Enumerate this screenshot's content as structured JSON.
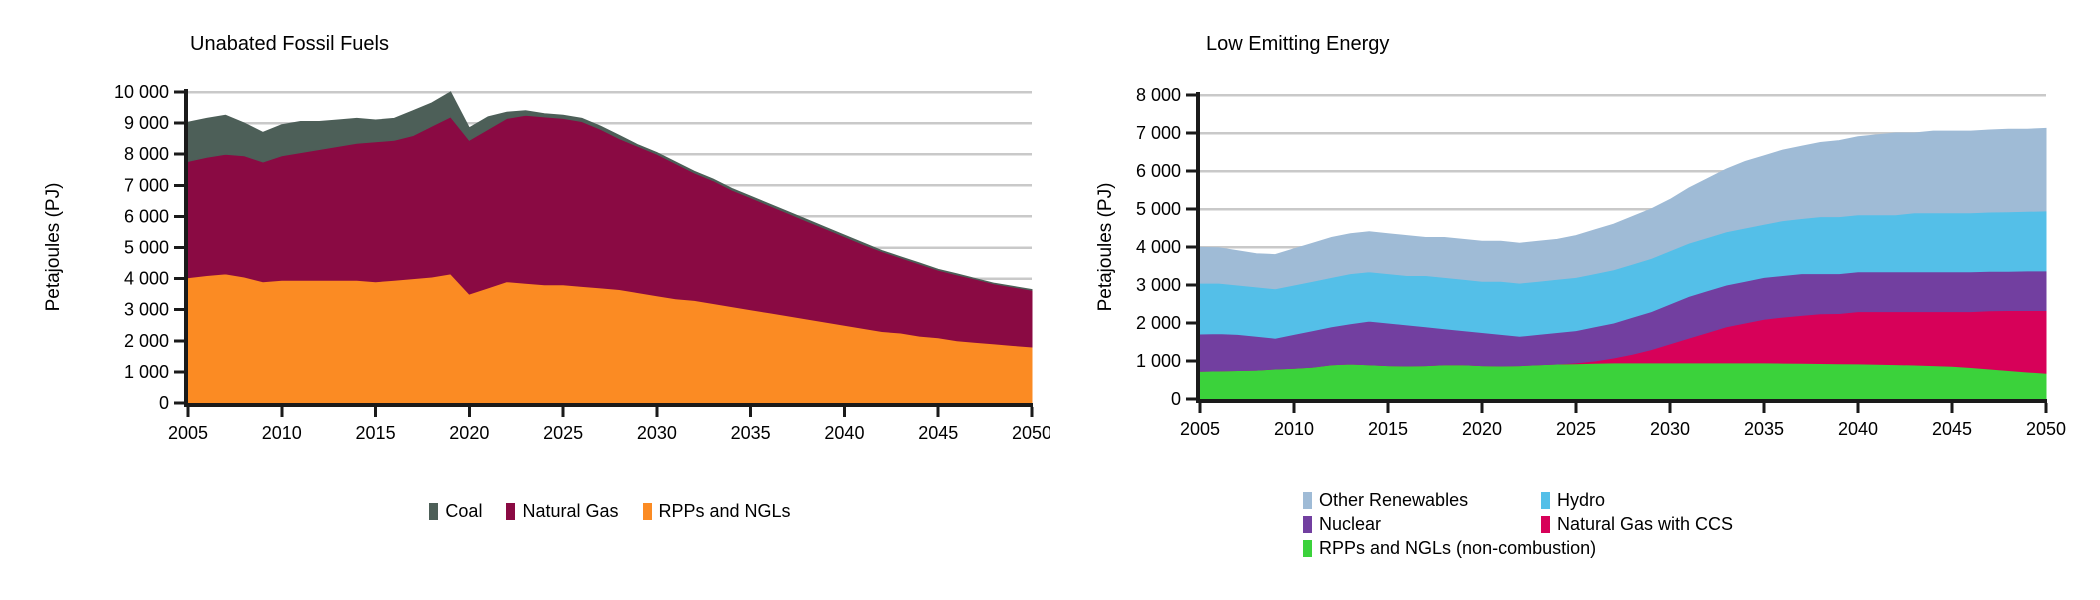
{
  "figure": {
    "background": "#ffffff",
    "axis_color": "#1a1a1a",
    "grid_color": "#c9c9c9"
  },
  "chart_data": [
    {
      "type": "area",
      "stacked": true,
      "title": "Unabated Fossil Fuels",
      "ylabel": "Petajoules (PJ)",
      "xlabel": "",
      "xlim": [
        2005,
        2050
      ],
      "ylim": [
        0,
        10000
      ],
      "grid": true,
      "legend_position": "bottom-center",
      "x_ticks": [
        2005,
        2010,
        2015,
        2020,
        2025,
        2030,
        2035,
        2040,
        2045,
        2050
      ],
      "x_tick_labels": [
        "2005",
        "2010",
        "2015",
        "2020",
        "2025",
        "2030",
        "2035",
        "2040",
        "2045",
        "2050"
      ],
      "y_tick_step": 1000,
      "y_tick_labels": [
        "0",
        "1 000",
        "2 000",
        "3 000",
        "4 000",
        "5 000",
        "6 000",
        "7 000",
        "8 000",
        "9 000",
        "10 000"
      ],
      "x": [
        2005,
        2006,
        2007,
        2008,
        2009,
        2010,
        2011,
        2012,
        2013,
        2014,
        2015,
        2016,
        2017,
        2018,
        2019,
        2020,
        2021,
        2022,
        2023,
        2024,
        2025,
        2026,
        2027,
        2028,
        2029,
        2030,
        2031,
        2032,
        2033,
        2034,
        2035,
        2036,
        2037,
        2038,
        2039,
        2040,
        2041,
        2042,
        2043,
        2044,
        2045,
        2046,
        2047,
        2048,
        2049,
        2050
      ],
      "series": [
        {
          "name": "RPPs and NGLs",
          "color": "#fb8b23",
          "values": [
            4030,
            4100,
            4150,
            4050,
            3900,
            3950,
            3950,
            3950,
            3950,
            3950,
            3900,
            3950,
            4000,
            4050,
            4150,
            3500,
            3700,
            3900,
            3850,
            3800,
            3800,
            3750,
            3700,
            3650,
            3550,
            3450,
            3350,
            3300,
            3200,
            3100,
            3000,
            2900,
            2800,
            2700,
            2600,
            2500,
            2400,
            2300,
            2250,
            2150,
            2100,
            2000,
            1950,
            1900,
            1850,
            1800
          ]
        },
        {
          "name": "Natural Gas",
          "color": "#8a0a43",
          "values": [
            3740,
            3800,
            3850,
            3900,
            3850,
            4000,
            4100,
            4200,
            4300,
            4400,
            4500,
            4500,
            4600,
            4850,
            5050,
            4950,
            5100,
            5250,
            5400,
            5400,
            5350,
            5300,
            5100,
            4850,
            4700,
            4550,
            4350,
            4100,
            3950,
            3750,
            3600,
            3450,
            3300,
            3150,
            3000,
            2850,
            2700,
            2570,
            2420,
            2320,
            2170,
            2120,
            2030,
            1930,
            1880,
            1830
          ]
        },
        {
          "name": "Coal",
          "color": "#4d5f58",
          "values": [
            1260,
            1250,
            1250,
            1050,
            950,
            1000,
            1000,
            900,
            850,
            800,
            700,
            700,
            800,
            750,
            800,
            400,
            400,
            200,
            150,
            100,
            100,
            100,
            100,
            100,
            50,
            50,
            50,
            50,
            50,
            50,
            50,
            50,
            50,
            50,
            50,
            50,
            50,
            30,
            30,
            30,
            30,
            30,
            20,
            20,
            20,
            20
          ]
        }
      ],
      "legend": {
        "layout": "row",
        "order": [
          2,
          1,
          0
        ]
      }
    },
    {
      "type": "area",
      "stacked": true,
      "title": "Low Emitting Energy",
      "ylabel": "Petajoules (PJ)",
      "xlabel": "",
      "xlim": [
        2005,
        2050
      ],
      "ylim": [
        0,
        8000
      ],
      "grid": true,
      "legend_position": "bottom-two-columns",
      "x_ticks": [
        2005,
        2010,
        2015,
        2020,
        2025,
        2030,
        2035,
        2040,
        2045,
        2050
      ],
      "x_tick_labels": [
        "2005",
        "2010",
        "2015",
        "2020",
        "2025",
        "2030",
        "2035",
        "2040",
        "2045",
        "2050"
      ],
      "y_tick_step": 1000,
      "y_tick_labels": [
        "0",
        "1 000",
        "2 000",
        "3 000",
        "4 000",
        "5 000",
        "6 000",
        "7 000",
        "8 000"
      ],
      "x": [
        2005,
        2006,
        2007,
        2008,
        2009,
        2010,
        2011,
        2012,
        2013,
        2014,
        2015,
        2016,
        2017,
        2018,
        2019,
        2020,
        2021,
        2022,
        2023,
        2024,
        2025,
        2026,
        2027,
        2028,
        2029,
        2030,
        2031,
        2032,
        2033,
        2034,
        2035,
        2036,
        2037,
        2038,
        2039,
        2040,
        2041,
        2042,
        2043,
        2044,
        2045,
        2046,
        2047,
        2048,
        2049,
        2050
      ],
      "series": [
        {
          "name": "RPPs and NGLs (non-combustion)",
          "color": "#3bd23b",
          "values": [
            730,
            740,
            750,
            760,
            790,
            810,
            840,
            900,
            920,
            900,
            880,
            870,
            880,
            900,
            900,
            880,
            870,
            880,
            900,
            920,
            930,
            940,
            950,
            950,
            950,
            950,
            950,
            950,
            950,
            950,
            950,
            945,
            940,
            935,
            930,
            925,
            915,
            905,
            895,
            880,
            860,
            830,
            790,
            750,
            710,
            680
          ]
        },
        {
          "name": "Natural Gas with CCS",
          "color": "#d70159",
          "values": [
            0,
            0,
            0,
            0,
            0,
            0,
            0,
            0,
            0,
            0,
            0,
            0,
            0,
            0,
            0,
            0,
            0,
            0,
            0,
            0,
            20,
            60,
            130,
            230,
            350,
            500,
            650,
            800,
            950,
            1050,
            1150,
            1210,
            1260,
            1310,
            1320,
            1375,
            1385,
            1395,
            1405,
            1420,
            1440,
            1470,
            1530,
            1580,
            1620,
            1650
          ]
        },
        {
          "name": "Nuclear",
          "color": "#723fa0",
          "values": [
            980,
            980,
            950,
            890,
            810,
            890,
            960,
            1000,
            1060,
            1150,
            1120,
            1080,
            1020,
            950,
            900,
            870,
            830,
            770,
            800,
            830,
            850,
            900,
            920,
            970,
            1000,
            1050,
            1100,
            1100,
            1100,
            1100,
            1100,
            1095,
            1100,
            1055,
            1050,
            1050,
            1050,
            1050,
            1050,
            1050,
            1050,
            1050,
            1040,
            1030,
            1040,
            1040
          ]
        },
        {
          "name": "Hydro",
          "color": "#54bfe8",
          "values": [
            1340,
            1330,
            1300,
            1300,
            1300,
            1300,
            1300,
            1300,
            1320,
            1300,
            1300,
            1300,
            1350,
            1350,
            1350,
            1350,
            1400,
            1400,
            1400,
            1400,
            1400,
            1400,
            1400,
            1400,
            1400,
            1400,
            1400,
            1400,
            1400,
            1400,
            1400,
            1445,
            1450,
            1500,
            1500,
            1500,
            1500,
            1500,
            1550,
            1550,
            1550,
            1550,
            1560,
            1570,
            1570,
            1580
          ]
        },
        {
          "name": "Other Renewables",
          "color": "#9fbbd6",
          "values": [
            940,
            930,
            900,
            870,
            900,
            950,
            1000,
            1050,
            1050,
            1050,
            1050,
            1050,
            1000,
            1050,
            1050,
            1050,
            1050,
            1050,
            1050,
            1050,
            1100,
            1150,
            1200,
            1250,
            1300,
            1350,
            1450,
            1550,
            1650,
            1750,
            1800,
            1855,
            1900,
            1950,
            2000,
            2050,
            2100,
            2150,
            2100,
            2150,
            2150,
            2150,
            2160,
            2170,
            2160,
            2170
          ]
        }
      ],
      "legend": {
        "layout": "columns",
        "columns": [
          [
            4,
            2,
            0
          ],
          [
            3,
            1
          ]
        ]
      }
    }
  ]
}
